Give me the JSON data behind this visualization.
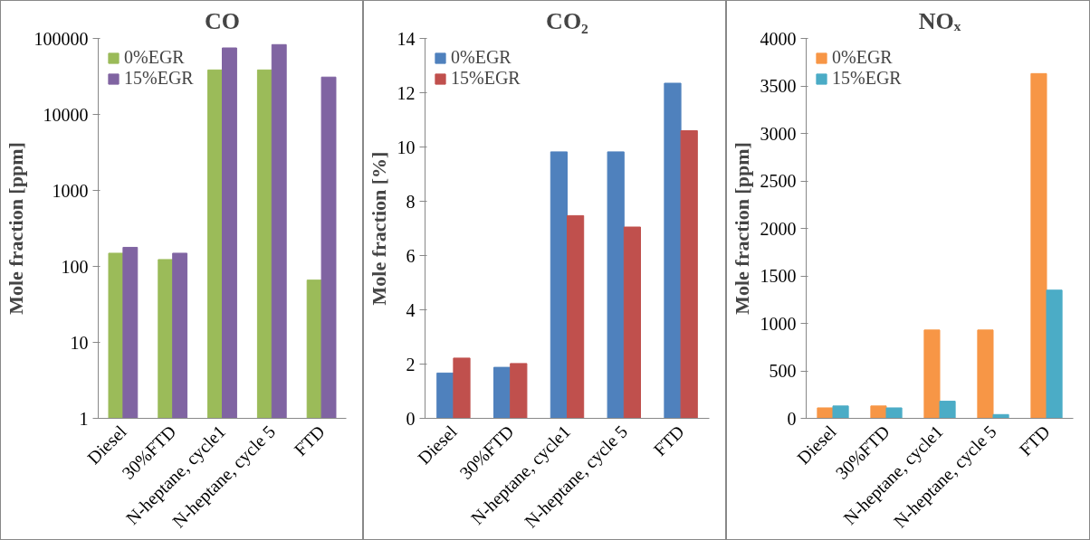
{
  "chart_data": [
    {
      "type": "bar",
      "title": "CO",
      "ylabel": "Mole fraction [ppm]",
      "log": "y",
      "legend": "top left",
      "categories": [
        "Diesel",
        "30%FTD",
        "N-heptane, cycle1",
        "N-heptane, cycle 5",
        "FTD"
      ],
      "ylim": [
        1,
        100000
      ],
      "yticks": [
        1,
        10,
        100,
        1000,
        10000,
        100000
      ],
      "series": [
        {
          "name": "0%EGR",
          "color": "#9bbb59",
          "values": [
            149,
            123,
            38500,
            38500,
            66
          ]
        },
        {
          "name": "15%EGR",
          "color": "#8064a2",
          "values": [
            178,
            149,
            75000,
            83000,
            31000
          ]
        }
      ]
    },
    {
      "type": "bar",
      "title": "CO₂",
      "ylabel": "Mole fraction [%]",
      "legend": "top left",
      "categories": [
        "Diesel",
        "30%FTD",
        "N-heptane, cycle1",
        "N-heptane, cycle 5",
        "FTD"
      ],
      "ylim": [
        0,
        14
      ],
      "yticks": [
        0,
        2,
        4,
        6,
        8,
        10,
        12,
        14
      ],
      "series": [
        {
          "name": "0%EGR",
          "color": "#4f81bd",
          "values": [
            1.67,
            1.88,
            9.82,
            9.82,
            12.35
          ]
        },
        {
          "name": "15%EGR",
          "color": "#c0504d",
          "values": [
            2.22,
            2.02,
            7.47,
            7.05,
            10.6
          ]
        }
      ]
    },
    {
      "type": "bar",
      "title": "NOₓ",
      "ylabel": "Mole fraction [ppm]",
      "legend": "top left",
      "categories": [
        "Diesel",
        "30%FTD",
        "N-heptane, cycle1",
        "N-heptane, cycle 5",
        "FTD"
      ],
      "ylim": [
        0,
        4000
      ],
      "yticks": [
        0,
        500,
        1000,
        1500,
        2000,
        2500,
        3000,
        3500,
        4000
      ],
      "series": [
        {
          "name": "0%EGR",
          "color": "#f79646",
          "values": [
            110,
            130,
            930,
            930,
            3630
          ]
        },
        {
          "name": "15%EGR",
          "color": "#4bacc6",
          "values": [
            130,
            110,
            180,
            40,
            1350
          ]
        }
      ]
    }
  ]
}
